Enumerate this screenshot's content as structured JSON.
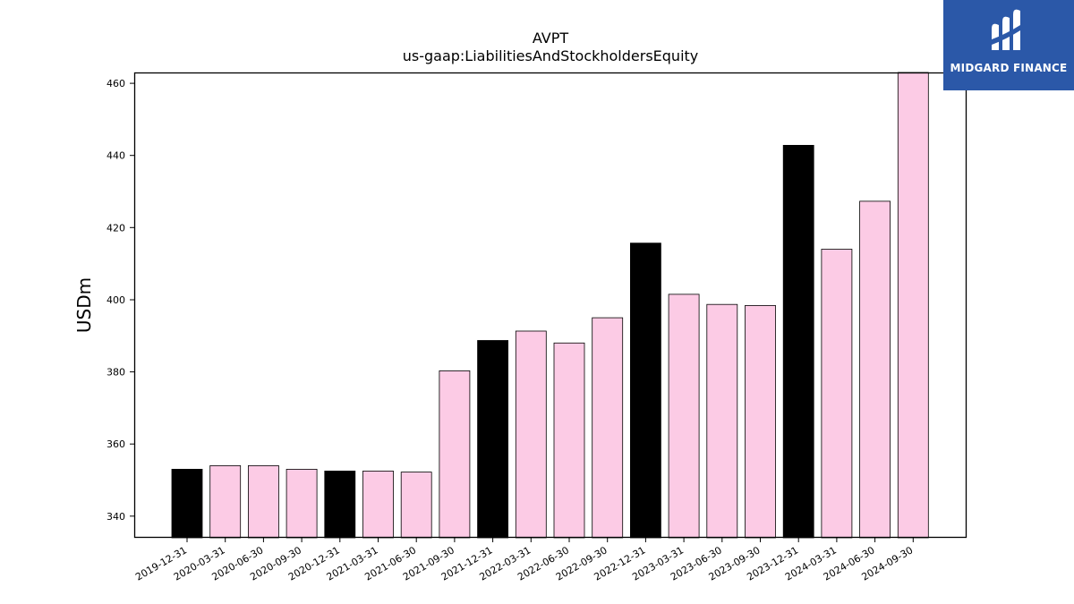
{
  "brand": {
    "name": "MIDGARD FINANCE",
    "background": "#2b58a8",
    "icon": "midgard-logo-icon"
  },
  "chart_data": {
    "type": "bar",
    "title": "AVPT",
    "subtitle": "us-gaap:LiabilitiesAndStockholdersEquity",
    "xlabel": "",
    "ylabel": "USDm",
    "ylim": [
      334,
      463
    ],
    "yticks": [
      340,
      360,
      380,
      400,
      420,
      440,
      460
    ],
    "grid": false,
    "categories": [
      "2019-12-31",
      "2020-03-31",
      "2020-06-30",
      "2020-09-30",
      "2020-12-31",
      "2021-03-31",
      "2021-06-30",
      "2021-09-30",
      "2021-12-31",
      "2022-03-31",
      "2022-06-30",
      "2022-09-30",
      "2022-12-31",
      "2023-03-31",
      "2023-06-30",
      "2023-09-30",
      "2023-12-31",
      "2024-03-31",
      "2024-06-30",
      "2024-09-30"
    ],
    "values": [
      353.0,
      354.0,
      354.0,
      353.0,
      352.5,
      352.5,
      352.2,
      380.3,
      388.7,
      391.3,
      388.0,
      395.0,
      415.7,
      401.5,
      398.7,
      398.4,
      442.8,
      414.0,
      427.3,
      463.0
    ],
    "annual": [
      true,
      false,
      false,
      false,
      true,
      false,
      false,
      false,
      true,
      false,
      false,
      false,
      true,
      false,
      false,
      false,
      true,
      false,
      false,
      false
    ],
    "colors": {
      "annual": "#000000",
      "quarterly": "#fccbe5",
      "edge": "#000000"
    }
  }
}
